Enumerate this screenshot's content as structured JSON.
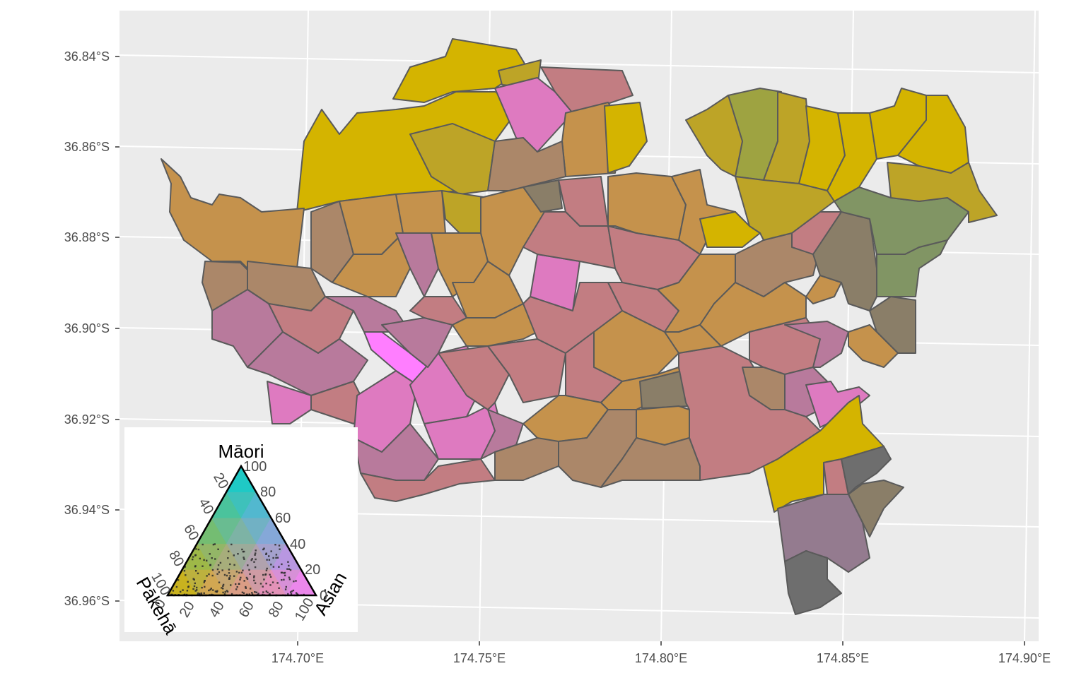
{
  "map": {
    "panel_background": "#ebebeb",
    "grid_color": "#ffffff",
    "border_color": "#5a5a5a",
    "y_axis_labels": [
      "36.84°S",
      "36.86°S",
      "36.88°S",
      "36.90°S",
      "36.92°S",
      "36.94°S",
      "36.96°S"
    ],
    "x_axis_labels": [
      "174.70°E",
      "174.75°E",
      "174.80°E",
      "174.85°E",
      "174.90°E"
    ],
    "colors": {
      "pakeha": "#d4b400",
      "maori": "#00d0d0",
      "asian": "#ff7eff",
      "mixed_brown": "#c5924c",
      "mixed_rose": "#c27d82",
      "mixed_purple": "#b87a9c",
      "mixed_pink": "#de7ac0",
      "olive": "#bda427",
      "green_olive": "#9ea341",
      "sage": "#819564",
      "taupe": "#ab8769",
      "gray_brown": "#8a7e68",
      "gray": "#6e6e6e",
      "mauve": "#947b8f"
    }
  },
  "legend": {
    "labels": {
      "top": "Māori",
      "left": "Pākehā",
      "right": "Asian"
    },
    "left_ticks": [
      "20",
      "40",
      "60",
      "80",
      "100"
    ],
    "right_ticks": [
      "100",
      "80",
      "60",
      "40",
      "20",
      "0"
    ],
    "bottom_ticks": [
      "0",
      "20",
      "40",
      "60",
      "80",
      "100"
    ]
  }
}
